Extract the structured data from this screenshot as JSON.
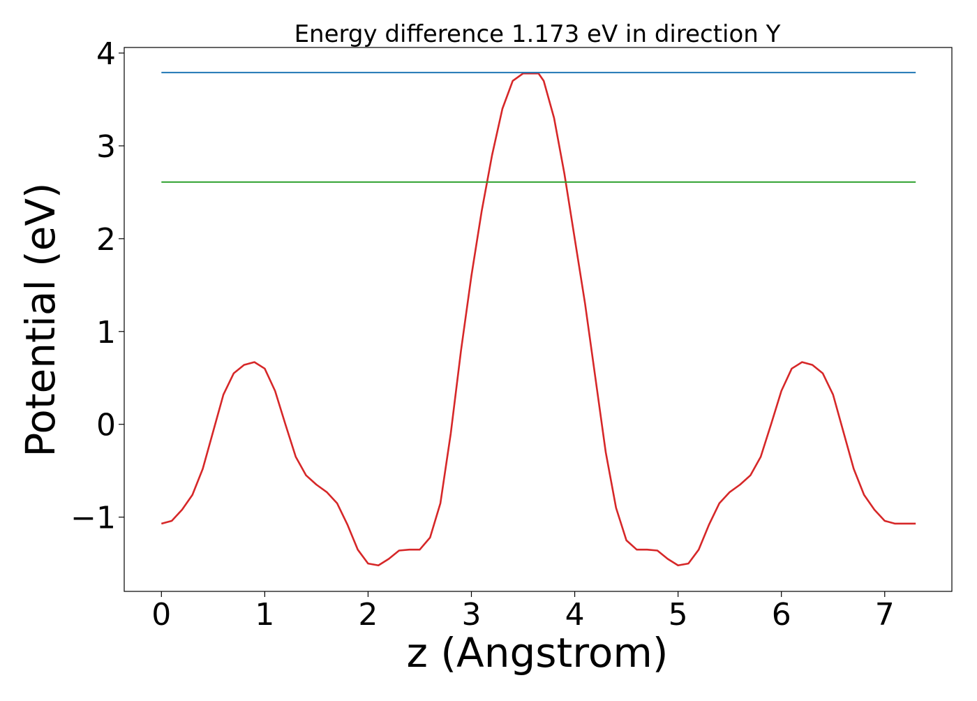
{
  "chart_data": {
    "type": "line",
    "title": "Energy difference 1.173 eV in direction Y",
    "xlabel": "z (Angstrom)",
    "ylabel": "Potential (eV)",
    "xlim": [
      -0.36,
      7.65
    ],
    "ylim": [
      -1.8,
      4.06
    ],
    "xticks": [
      0,
      1,
      2,
      3,
      4,
      5,
      6,
      7
    ],
    "yticks": [
      -1,
      0,
      1,
      2,
      3,
      4
    ],
    "grid": false,
    "legend": "none",
    "series": [
      {
        "color": "#d62728",
        "x": [
          0.0,
          0.1,
          0.2,
          0.3,
          0.4,
          0.5,
          0.6,
          0.7,
          0.8,
          0.9,
          1.0,
          1.1,
          1.2,
          1.3,
          1.4,
          1.5,
          1.6,
          1.7,
          1.8,
          1.9,
          2.0,
          2.1,
          2.2,
          2.3,
          2.4,
          2.5,
          2.6,
          2.7,
          2.8,
          2.9,
          3.0,
          3.1,
          3.2,
          3.3,
          3.4,
          3.5,
          3.6,
          3.65,
          3.7,
          3.8,
          3.9,
          4.0,
          4.1,
          4.2,
          4.3,
          4.4,
          4.5,
          4.6,
          4.7,
          4.8,
          4.9,
          5.0,
          5.1,
          5.2,
          5.3,
          5.4,
          5.5,
          5.6,
          5.7,
          5.8,
          5.9,
          6.0,
          6.1,
          6.2,
          6.3,
          6.4,
          6.5,
          6.6,
          6.7,
          6.8,
          6.9,
          7.0,
          7.1,
          7.2,
          7.3
        ],
        "y": [
          -1.07,
          -1.04,
          -0.92,
          -0.76,
          -0.48,
          -0.08,
          0.32,
          0.55,
          0.64,
          0.67,
          0.6,
          0.36,
          0.0,
          -0.35,
          -0.55,
          -0.65,
          -0.73,
          -0.85,
          -1.08,
          -1.35,
          -1.5,
          -1.52,
          -1.45,
          -1.36,
          -1.35,
          -1.35,
          -1.22,
          -0.85,
          -0.1,
          0.8,
          1.6,
          2.3,
          2.9,
          3.4,
          3.7,
          3.78,
          3.78,
          3.78,
          3.7,
          3.3,
          2.7,
          2.0,
          1.3,
          0.5,
          -0.3,
          -0.9,
          -1.25,
          -1.35,
          -1.35,
          -1.36,
          -1.45,
          -1.52,
          -1.5,
          -1.35,
          -1.08,
          -0.85,
          -0.73,
          -0.65,
          -0.55,
          -0.35,
          0.0,
          0.36,
          0.6,
          0.67,
          0.64,
          0.55,
          0.32,
          -0.08,
          -0.48,
          -0.76,
          -0.92,
          -1.04,
          -1.07,
          -1.07,
          -1.07
        ]
      },
      {
        "color": "#1f77b4",
        "x": [
          0.0,
          7.3
        ],
        "y": [
          3.79,
          3.79
        ]
      },
      {
        "color": "#2ca02c",
        "x": [
          0.0,
          7.3
        ],
        "y": [
          2.61,
          2.61
        ]
      }
    ]
  }
}
